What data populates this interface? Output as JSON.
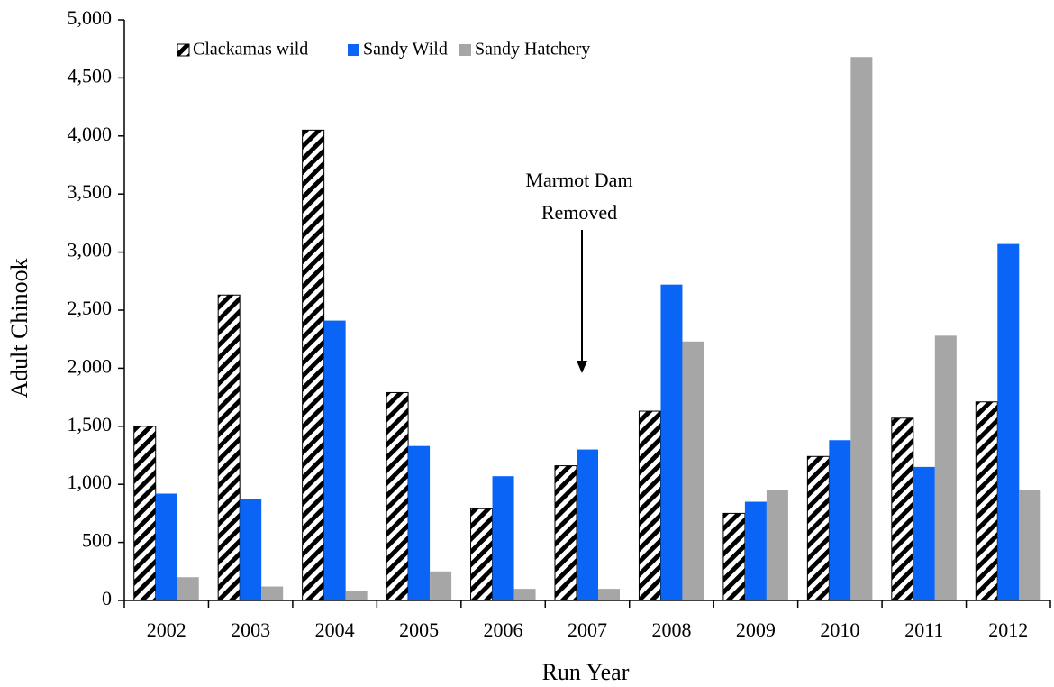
{
  "chart_data": {
    "type": "bar",
    "x_label": "Run Year",
    "y_label": "Adult Chinook",
    "categories": [
      "2002",
      "2003",
      "2004",
      "2005",
      "2006",
      "2007",
      "2008",
      "2009",
      "2010",
      "2011",
      "2012"
    ],
    "series": [
      {
        "name": "Clackamas wild",
        "color": "#000000",
        "pattern": "hatch",
        "values": [
          1500,
          2630,
          4050,
          1790,
          790,
          1160,
          1630,
          750,
          1240,
          1570,
          1710
        ]
      },
      {
        "name": "Sandy Wild",
        "color": "#0a64f5",
        "values": [
          920,
          870,
          2410,
          1330,
          1070,
          1300,
          2720,
          850,
          1380,
          1150,
          3070
        ]
      },
      {
        "name": "Sandy Hatchery",
        "color": "#a6a6a6",
        "values": [
          200,
          120,
          80,
          250,
          100,
          100,
          2230,
          950,
          4680,
          2280,
          950
        ]
      }
    ],
    "ylim": [
      0,
      5000
    ],
    "yticks": [
      0,
      500,
      {
        "value": 1000,
        "label": "1,000"
      },
      {
        "value": 1500,
        "label": "1,500"
      },
      {
        "value": 2000,
        "label": "2,000"
      },
      {
        "value": 2500,
        "label": "2,500"
      },
      {
        "value": 3000,
        "label": "3,000"
      },
      {
        "value": 3500,
        "label": "3,500"
      },
      {
        "value": 4000,
        "label": "4,000"
      },
      {
        "value": 4500,
        "label": "4,500"
      },
      {
        "value": 5000,
        "label": "5,000"
      }
    ],
    "legend": "top-left",
    "annotation": [
      "Marmot Dam",
      "Removed"
    ]
  }
}
